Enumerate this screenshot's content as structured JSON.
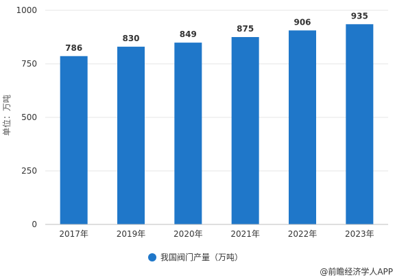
{
  "chart_data": {
    "type": "bar",
    "categories": [
      "2017年",
      "2019年",
      "2020年",
      "2021年",
      "2022年",
      "2023年"
    ],
    "series": [
      {
        "name": "我国阀门产量（万吨）",
        "values": [
          786,
          830,
          849,
          875,
          906,
          935
        ],
        "color": "#1f77c9"
      }
    ],
    "ylabel": "单位：万吨",
    "ylim": [
      0,
      1000
    ],
    "yticks": [
      0,
      250,
      500,
      750,
      1000
    ],
    "grid": true,
    "legend_position": "bottom-center"
  },
  "footer": {
    "source": "@前瞻经济学人APP"
  }
}
